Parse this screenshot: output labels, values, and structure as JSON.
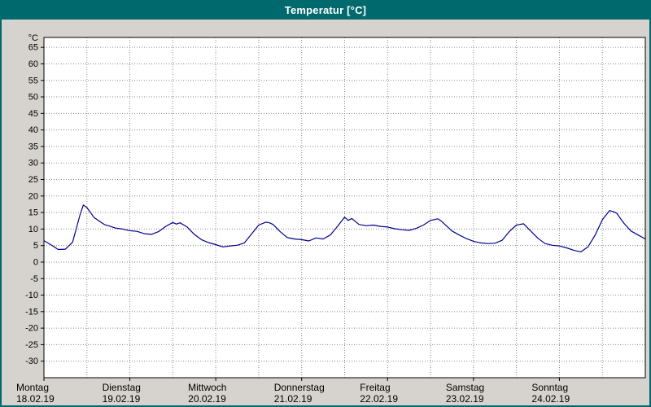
{
  "window": {
    "title": "Temperatur [°C]"
  },
  "chart_data": {
    "type": "line",
    "title": "Temperatur [°C]",
    "xlabel": "",
    "ylabel": "°C",
    "ylim": [
      -35,
      68
    ],
    "ytick_min": -30,
    "ytick_max": 65,
    "ytick_step": 5,
    "grid": true,
    "legend": "none",
    "x_total_hours": 168,
    "x_grid_step_hours": 12,
    "days": [
      {
        "name": "Montag",
        "date": "18.02.19"
      },
      {
        "name": "Dienstag",
        "date": "19.02.19"
      },
      {
        "name": "Mittwoch",
        "date": "20.02.19"
      },
      {
        "name": "Donnerstag",
        "date": "21.02.19"
      },
      {
        "name": "Freitag",
        "date": "22.02.19"
      },
      {
        "name": "Samstag",
        "date": "23.02.19"
      },
      {
        "name": "Sonntag",
        "date": "24.02.19"
      }
    ],
    "colors": {
      "line": "#00008b",
      "grid": "#8a8a8a",
      "plot_bg": "#ffffff",
      "panel_bg": "#d6d3ce",
      "titlebar_bg": "#00696e"
    },
    "series": [
      {
        "name": "Temperatur",
        "color": "#00008b",
        "points": [
          [
            0,
            6.5
          ],
          [
            2,
            5.2
          ],
          [
            4,
            3.8
          ],
          [
            6,
            3.9
          ],
          [
            8,
            6.0
          ],
          [
            10,
            14.0
          ],
          [
            11,
            17.3
          ],
          [
            12,
            16.5
          ],
          [
            14,
            13.5
          ],
          [
            16,
            12.0
          ],
          [
            17,
            11.3
          ],
          [
            18,
            11.0
          ],
          [
            20,
            10.3
          ],
          [
            22,
            10.0
          ],
          [
            24,
            9.5
          ],
          [
            26,
            9.3
          ],
          [
            28,
            8.6
          ],
          [
            30,
            8.4
          ],
          [
            32,
            9.2
          ],
          [
            34,
            10.8
          ],
          [
            36,
            12.0
          ],
          [
            37,
            11.5
          ],
          [
            38,
            11.9
          ],
          [
            40,
            10.6
          ],
          [
            42,
            8.4
          ],
          [
            44,
            6.8
          ],
          [
            46,
            5.9
          ],
          [
            48,
            5.3
          ],
          [
            50,
            4.6
          ],
          [
            52,
            4.9
          ],
          [
            54,
            5.1
          ],
          [
            56,
            5.8
          ],
          [
            58,
            8.5
          ],
          [
            60,
            11.2
          ],
          [
            62,
            12.1
          ],
          [
            63,
            11.9
          ],
          [
            64,
            11.4
          ],
          [
            66,
            9.2
          ],
          [
            68,
            7.4
          ],
          [
            70,
            7.0
          ],
          [
            72,
            6.8
          ],
          [
            74,
            6.4
          ],
          [
            76,
            7.3
          ],
          [
            78,
            7.0
          ],
          [
            80,
            8.2
          ],
          [
            82,
            10.8
          ],
          [
            84,
            13.6
          ],
          [
            85,
            12.6
          ],
          [
            86,
            13.2
          ],
          [
            88,
            11.4
          ],
          [
            90,
            11.0
          ],
          [
            92,
            11.2
          ],
          [
            94,
            10.8
          ],
          [
            96,
            10.6
          ],
          [
            98,
            10.1
          ],
          [
            100,
            9.8
          ],
          [
            102,
            9.6
          ],
          [
            104,
            10.2
          ],
          [
            106,
            11.2
          ],
          [
            108,
            12.6
          ],
          [
            110,
            13.1
          ],
          [
            111,
            12.4
          ],
          [
            112,
            11.4
          ],
          [
            114,
            9.4
          ],
          [
            116,
            8.2
          ],
          [
            118,
            7.1
          ],
          [
            120,
            6.3
          ],
          [
            122,
            5.8
          ],
          [
            124,
            5.6
          ],
          [
            126,
            5.7
          ],
          [
            128,
            6.6
          ],
          [
            130,
            9.2
          ],
          [
            132,
            11.2
          ],
          [
            134,
            11.6
          ],
          [
            136,
            9.4
          ],
          [
            138,
            7.2
          ],
          [
            140,
            5.6
          ],
          [
            142,
            5.1
          ],
          [
            144,
            4.9
          ],
          [
            146,
            4.3
          ],
          [
            148,
            3.6
          ],
          [
            150,
            3.1
          ],
          [
            152,
            4.6
          ],
          [
            154,
            8.2
          ],
          [
            156,
            12.8
          ],
          [
            158,
            15.6
          ],
          [
            159,
            15.3
          ],
          [
            160,
            14.8
          ],
          [
            162,
            11.8
          ],
          [
            164,
            9.4
          ],
          [
            166,
            8.2
          ],
          [
            168,
            7.0
          ]
        ]
      }
    ]
  }
}
